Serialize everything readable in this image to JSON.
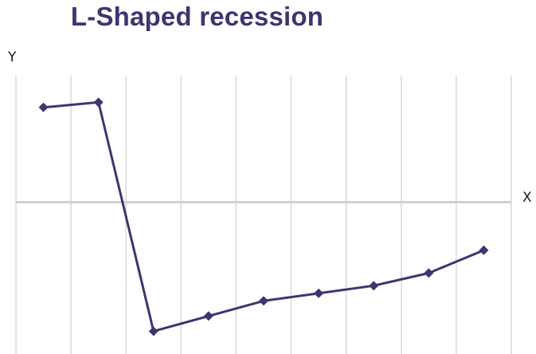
{
  "title": "L-Shaped recession",
  "colors": {
    "series": "#3b3670",
    "grid": "#d9d9d9",
    "zero_axis": "#cfcfcf",
    "title": "#3b3670"
  },
  "chart_data": {
    "type": "line",
    "title": "L-Shaped recession",
    "xlabel": "X",
    "ylabel": "Y",
    "x": [
      1,
      2,
      3,
      4,
      5,
      6,
      7,
      8,
      9
    ],
    "series": [
      {
        "values": [
          7.5,
          7.9,
          -10.2,
          -9.0,
          -7.8,
          -7.2,
          -6.6,
          -5.6,
          -3.8
        ]
      }
    ],
    "xlim": [
      0.5,
      9.5
    ],
    "ylim": [
      -12,
      10
    ],
    "grid": true,
    "marker": "diamond"
  }
}
